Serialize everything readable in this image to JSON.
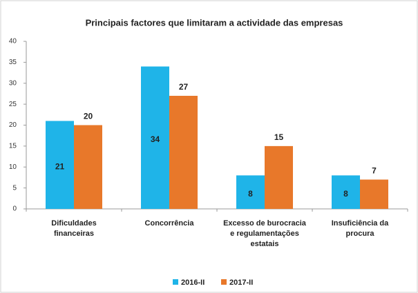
{
  "chart_data": {
    "type": "bar",
    "title": "Principais factores que limitaram a actividade das empresas",
    "categories": [
      "Dificuldades financeiras",
      "Concorrência",
      "Excesso de burocracia e regulamentações estatais",
      "Insuficiência da procura"
    ],
    "series": [
      {
        "name": "2016-II",
        "color": "#1fb4e8",
        "values": [
          21,
          34,
          8,
          8
        ]
      },
      {
        "name": "2017-II",
        "color": "#e8782a",
        "values": [
          20,
          27,
          15,
          7
        ]
      }
    ],
    "ylim": [
      0,
      40
    ],
    "yticks": [
      0,
      5,
      10,
      15,
      20,
      25,
      30,
      35,
      40
    ],
    "grid": false,
    "legend": "bottom"
  }
}
